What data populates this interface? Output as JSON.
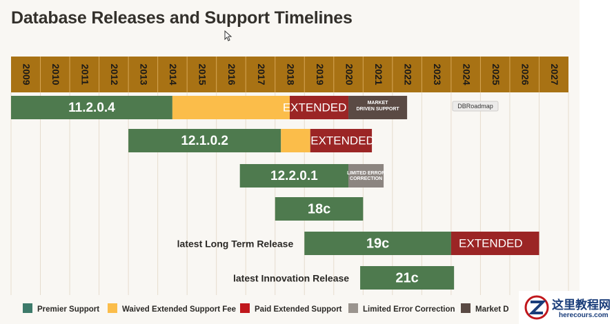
{
  "title": "Database Releases and Support Timelines",
  "watermark": {
    "text_cn": "这里教程网",
    "text_en": "herecours.com"
  },
  "chart_data": {
    "type": "timeline",
    "years": [
      "2009",
      "2010",
      "2011",
      "2012",
      "2013",
      "2014",
      "2015",
      "2016",
      "2017",
      "2018",
      "2019",
      "2020",
      "2021",
      "2022",
      "2023",
      "2024",
      "2025",
      "2026",
      "2027"
    ],
    "x_start": 2009,
    "x_end": 2027,
    "colors": {
      "premier": "#4e7a4e",
      "waived": "#fbbd4a",
      "paid": "#9b2525",
      "limited": "#8c8580",
      "market": "#5a4a44",
      "band": "#a87214"
    },
    "releases": [
      {
        "label": "11.2.0.4",
        "segments": [
          {
            "kind": "premier",
            "start": 2009.0,
            "end": 2014.5
          },
          {
            "kind": "waived",
            "start": 2014.5,
            "end": 2018.5
          },
          {
            "kind": "paid",
            "start": 2018.5,
            "end": 2020.5
          },
          {
            "kind": "market",
            "start": 2020.5,
            "end": 2022.5
          }
        ],
        "ext_text": "EXTENDED",
        "ext_center": 2019.35,
        "market_text": [
          "MARKET",
          "DRIVEN SUPPORT"
        ]
      },
      {
        "label": "12.1.0.2",
        "segments": [
          {
            "kind": "premier",
            "start": 2013.0,
            "end": 2018.2
          },
          {
            "kind": "waived",
            "start": 2018.2,
            "end": 2019.2
          },
          {
            "kind": "paid",
            "start": 2019.2,
            "end": 2021.3
          }
        ],
        "ext_text": "EXTENDED",
        "ext_center": 2020.3
      },
      {
        "label": "12.2.0.1",
        "segments": [
          {
            "kind": "premier",
            "start": 2016.8,
            "end": 2020.5
          },
          {
            "kind": "limited",
            "start": 2020.5,
            "end": 2021.7
          }
        ],
        "limited_text": [
          "LIMITED ERROR",
          "CORRECTION"
        ]
      },
      {
        "label": "18c",
        "segments": [
          {
            "kind": "premier",
            "start": 2018.0,
            "end": 2021.0
          }
        ]
      },
      {
        "label": "19c",
        "row_label": "latest Long Term Release",
        "segments": [
          {
            "kind": "premier",
            "start": 2019.0,
            "end": 2024.0
          },
          {
            "kind": "paid",
            "start": 2024.0,
            "end": 2027.0
          }
        ],
        "ext_text": "EXTENDED",
        "ext_center": 2025.35
      },
      {
        "label": "21c",
        "row_label": "latest Innovation Release",
        "segments": [
          {
            "kind": "premier",
            "start": 2020.9,
            "end": 2024.1
          }
        ]
      }
    ],
    "annotations": [
      {
        "text": "DBRoadmap"
      }
    ],
    "legend": [
      {
        "kind": "premier",
        "label": "Premier Support"
      },
      {
        "kind": "waived",
        "label": "Waived Extended Support Fee"
      },
      {
        "kind": "paid",
        "label": "Paid Extended Support"
      },
      {
        "kind": "limited",
        "label": "Limited Error Correction"
      },
      {
        "kind": "market",
        "label": "Market D"
      }
    ],
    "legend_colors": {
      "premier": "#3d7a6a",
      "waived": "#fbbd4a",
      "paid": "#c0171c",
      "limited": "#9a948e",
      "market": "#5a4a44"
    }
  }
}
